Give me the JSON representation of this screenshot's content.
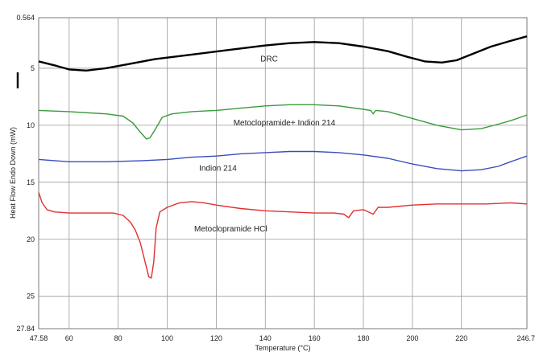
{
  "chart_data": {
    "type": "line",
    "xlabel": "Temperature (°C)",
    "ylabel": "Heat Flow Endo Down (mW)",
    "xlim": [
      47.58,
      246.7
    ],
    "ylim": [
      0.564,
      27.84
    ],
    "y_inverted": true,
    "grid": true,
    "x_ticks": [
      {
        "value": 47.58,
        "label": "47.58"
      },
      {
        "value": 60,
        "label": "60"
      },
      {
        "value": 80,
        "label": "80"
      },
      {
        "value": 100,
        "label": "100"
      },
      {
        "value": 120,
        "label": "120"
      },
      {
        "value": 140,
        "label": "140"
      },
      {
        "value": 160,
        "label": "160"
      },
      {
        "value": 180,
        "label": "180"
      },
      {
        "value": 200,
        "label": "200"
      },
      {
        "value": 220,
        "label": "220"
      },
      {
        "value": 246.7,
        "label": "246.7"
      }
    ],
    "y_ticks": [
      {
        "value": 0.564,
        "label": "0.564"
      },
      {
        "value": 5,
        "label": "5"
      },
      {
        "value": 10,
        "label": "10"
      },
      {
        "value": 15,
        "label": "15"
      },
      {
        "value": 20,
        "label": "20"
      },
      {
        "value": 25,
        "label": "25"
      },
      {
        "value": 27.84,
        "label": "27.84"
      }
    ],
    "series": [
      {
        "name": "DRC",
        "color": "#000000",
        "points": [
          [
            47.6,
            4.4
          ],
          [
            55,
            4.8
          ],
          [
            60,
            5.1
          ],
          [
            67,
            5.2
          ],
          [
            75,
            5.0
          ],
          [
            85,
            4.6
          ],
          [
            95,
            4.2
          ],
          [
            110,
            3.8
          ],
          [
            125,
            3.4
          ],
          [
            140,
            3.0
          ],
          [
            150,
            2.8
          ],
          [
            160,
            2.7
          ],
          [
            170,
            2.8
          ],
          [
            180,
            3.1
          ],
          [
            190,
            3.5
          ],
          [
            198,
            4.0
          ],
          [
            205,
            4.4
          ],
          [
            212,
            4.5
          ],
          [
            218,
            4.3
          ],
          [
            225,
            3.7
          ],
          [
            232,
            3.1
          ],
          [
            240,
            2.6
          ],
          [
            246.7,
            2.2
          ]
        ]
      },
      {
        "name": "Metoclopramide+ Indion 214",
        "color": "#3a9a3a",
        "points": [
          [
            47.6,
            8.7
          ],
          [
            60,
            8.8
          ],
          [
            75,
            9.0
          ],
          [
            82,
            9.2
          ],
          [
            86,
            9.8
          ],
          [
            89,
            10.6
          ],
          [
            91.5,
            11.2
          ],
          [
            93,
            11.1
          ],
          [
            95,
            10.4
          ],
          [
            98,
            9.3
          ],
          [
            102,
            9.0
          ],
          [
            110,
            8.8
          ],
          [
            120,
            8.7
          ],
          [
            130,
            8.5
          ],
          [
            140,
            8.3
          ],
          [
            150,
            8.2
          ],
          [
            160,
            8.2
          ],
          [
            170,
            8.3
          ],
          [
            180,
            8.6
          ],
          [
            183,
            8.7
          ],
          [
            184,
            9.0
          ],
          [
            185,
            8.7
          ],
          [
            190,
            8.8
          ],
          [
            200,
            9.4
          ],
          [
            210,
            10.0
          ],
          [
            220,
            10.4
          ],
          [
            228,
            10.3
          ],
          [
            235,
            9.9
          ],
          [
            240,
            9.6
          ],
          [
            246.7,
            9.1
          ]
        ]
      },
      {
        "name": "Indion 214",
        "color": "#3a4dbf",
        "points": [
          [
            47.6,
            13.0
          ],
          [
            60,
            13.2
          ],
          [
            75,
            13.2
          ],
          [
            90,
            13.1
          ],
          [
            100,
            13.0
          ],
          [
            110,
            12.8
          ],
          [
            120,
            12.7
          ],
          [
            130,
            12.5
          ],
          [
            140,
            12.4
          ],
          [
            150,
            12.3
          ],
          [
            160,
            12.3
          ],
          [
            170,
            12.4
          ],
          [
            180,
            12.6
          ],
          [
            190,
            12.9
          ],
          [
            200,
            13.4
          ],
          [
            210,
            13.8
          ],
          [
            220,
            14.0
          ],
          [
            228,
            13.9
          ],
          [
            235,
            13.6
          ],
          [
            240,
            13.2
          ],
          [
            246.7,
            12.7
          ]
        ]
      },
      {
        "name": "Metoclopramide HCl",
        "color": "#e03030",
        "points": [
          [
            47.6,
            15.9
          ],
          [
            49,
            16.8
          ],
          [
            51,
            17.4
          ],
          [
            54,
            17.6
          ],
          [
            60,
            17.7
          ],
          [
            70,
            17.7
          ],
          [
            78,
            17.7
          ],
          [
            82,
            17.9
          ],
          [
            85,
            18.5
          ],
          [
            87,
            19.2
          ],
          [
            89,
            20.3
          ],
          [
            91,
            22.0
          ],
          [
            92.5,
            23.3
          ],
          [
            93.5,
            23.4
          ],
          [
            94.5,
            22.0
          ],
          [
            95.5,
            19.0
          ],
          [
            97,
            17.6
          ],
          [
            100,
            17.2
          ],
          [
            105,
            16.8
          ],
          [
            110,
            16.7
          ],
          [
            115,
            16.8
          ],
          [
            120,
            17.0
          ],
          [
            130,
            17.3
          ],
          [
            140,
            17.5
          ],
          [
            150,
            17.6
          ],
          [
            160,
            17.7
          ],
          [
            168,
            17.7
          ],
          [
            172,
            17.8
          ],
          [
            174,
            18.1
          ],
          [
            176,
            17.5
          ],
          [
            180,
            17.4
          ],
          [
            184,
            17.8
          ],
          [
            186,
            17.2
          ],
          [
            190,
            17.2
          ],
          [
            200,
            17.0
          ],
          [
            210,
            16.9
          ],
          [
            220,
            16.9
          ],
          [
            230,
            16.9
          ],
          [
            240,
            16.8
          ],
          [
            246.7,
            16.9
          ]
        ]
      }
    ],
    "annotations": [
      {
        "text": "DRC",
        "x": 138,
        "y": 4.4
      },
      {
        "text": "Metoclopramide+ Indion 214",
        "x": 127,
        "y": 10.0
      },
      {
        "text": "Indion 214",
        "x": 113,
        "y": 14.0
      },
      {
        "text": "Metoclopramide HCl",
        "x": 111,
        "y": 19.3
      }
    ]
  }
}
